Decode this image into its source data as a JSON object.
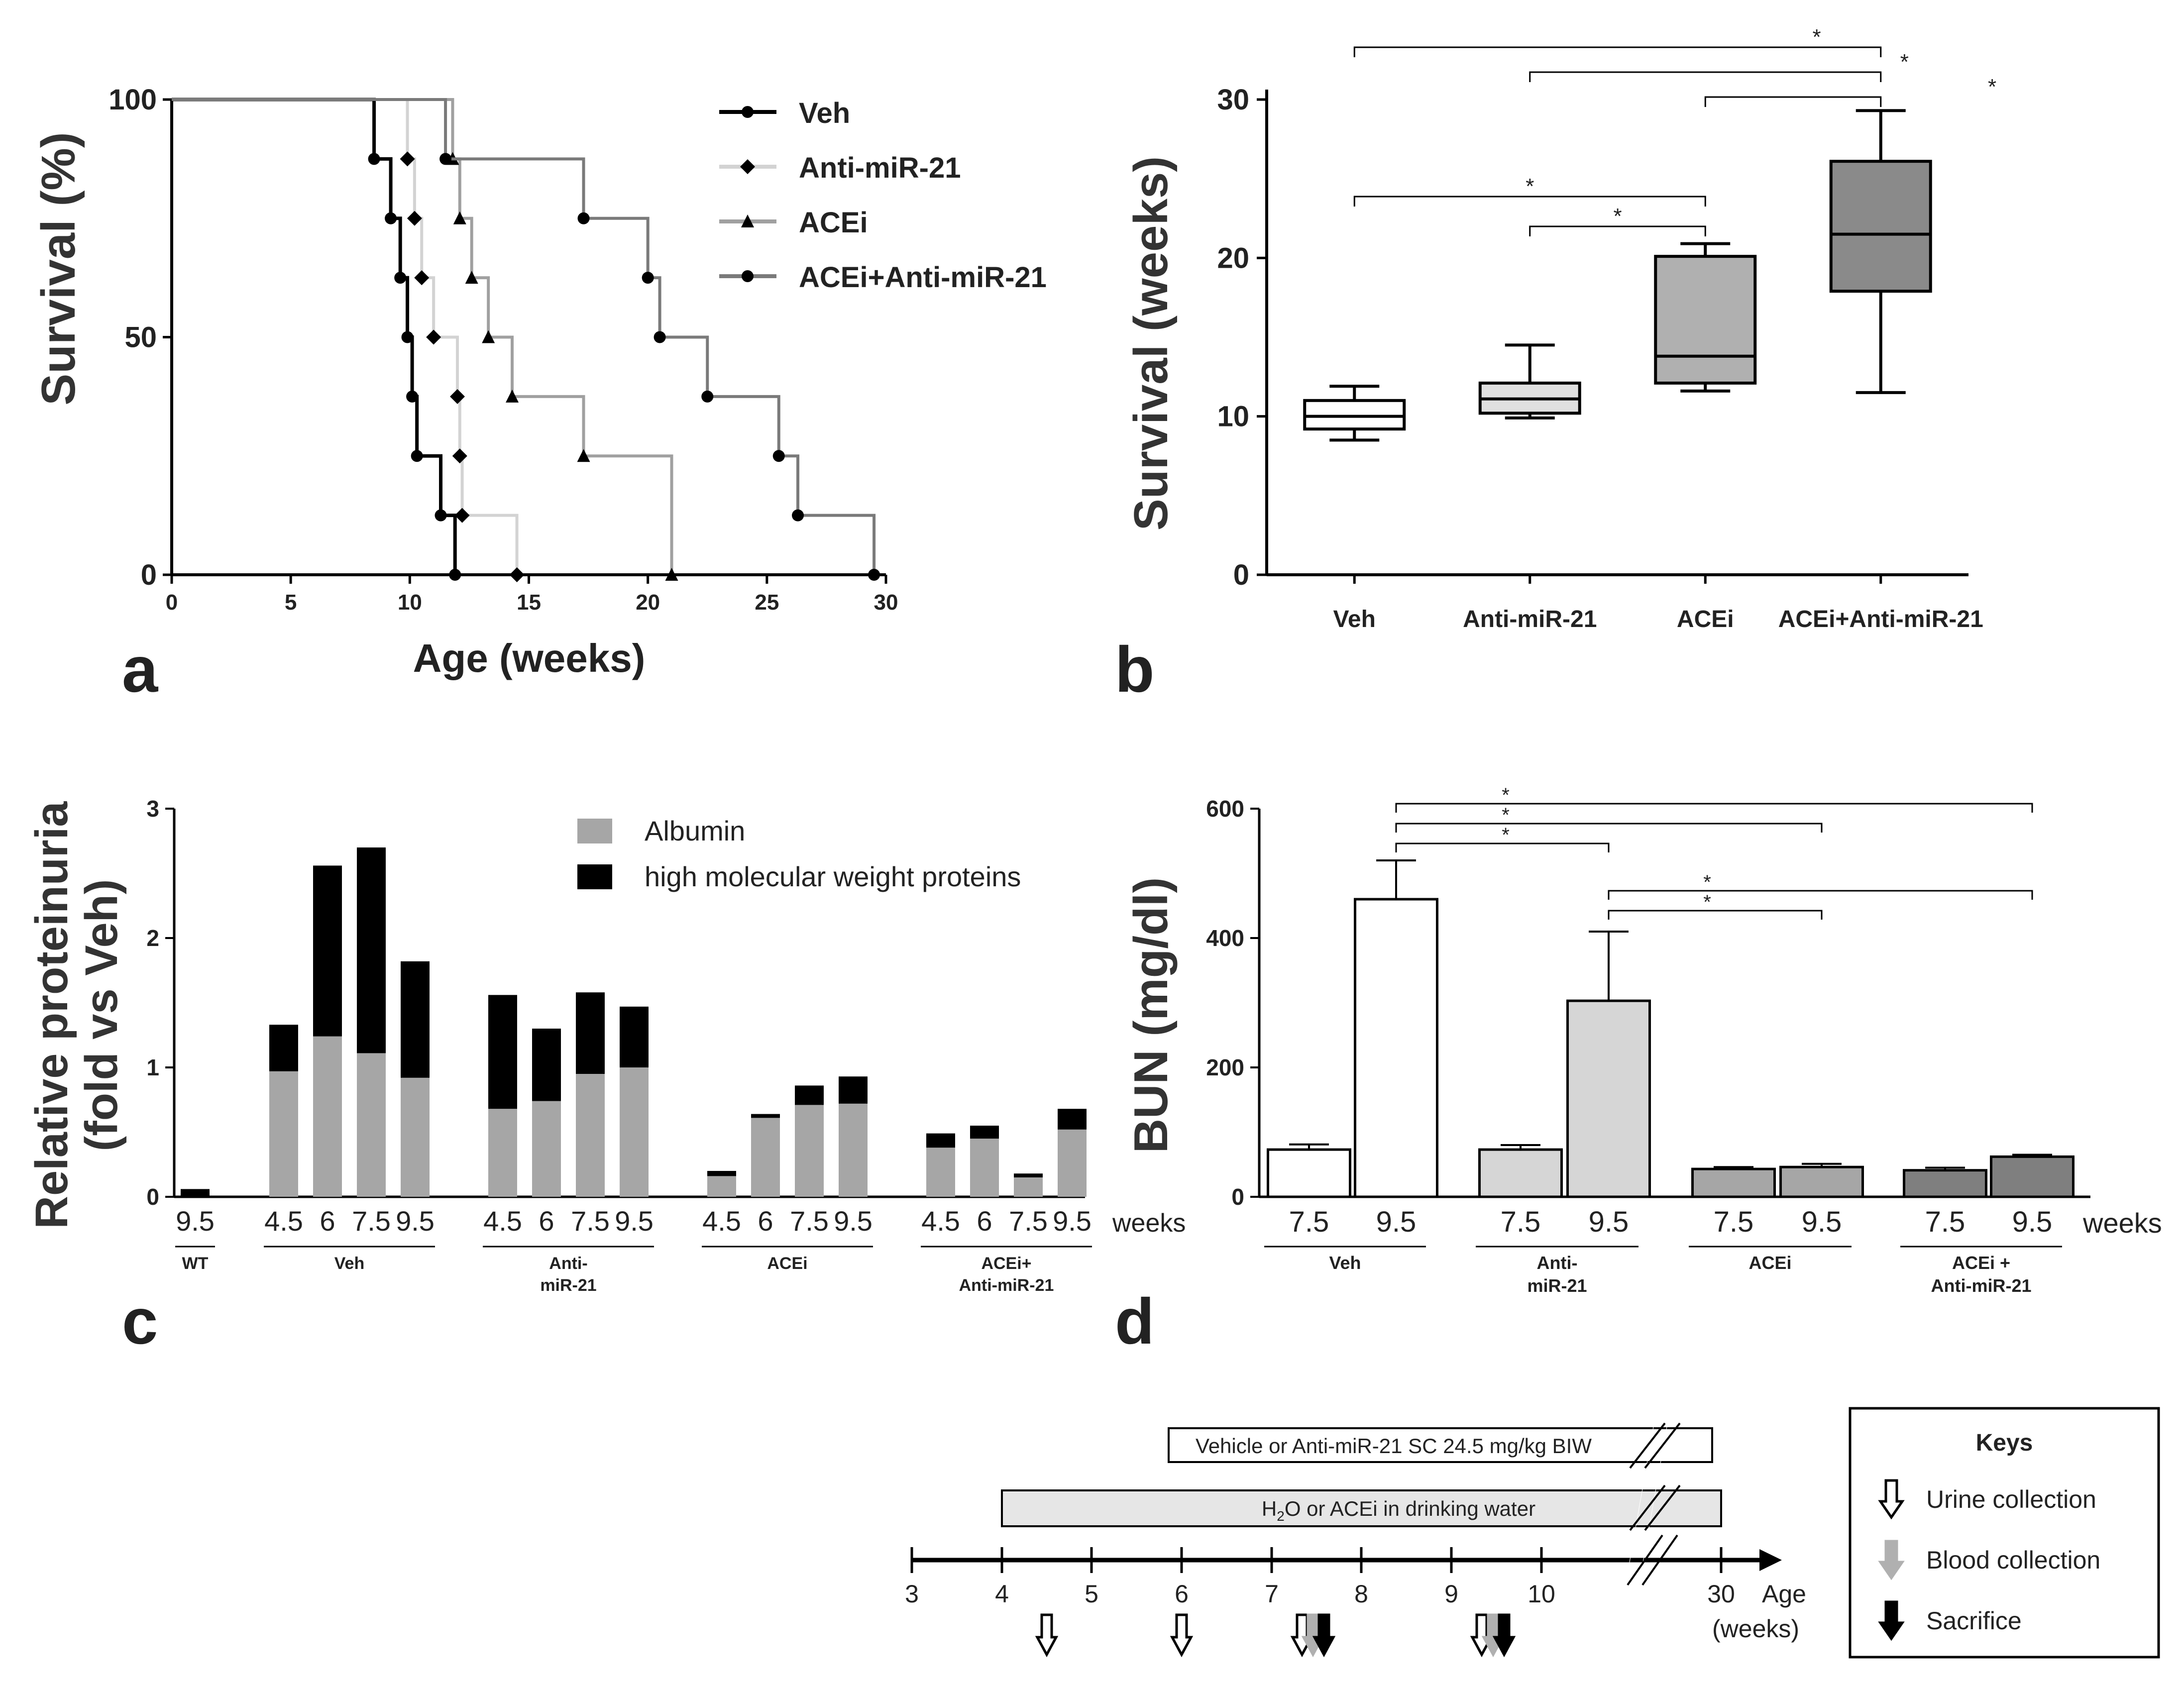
{
  "chart_data": [
    {
      "panel": "a",
      "type": "line",
      "subtype": "kaplan-meier",
      "xlabel": "Age (weeks)",
      "ylabel": "Survival (%)",
      "xlim": [
        0,
        30
      ],
      "ylim": [
        0,
        100
      ],
      "xticks": [
        "0",
        "5",
        "10",
        "15",
        "20",
        "25",
        "30"
      ],
      "yticks": [
        "0",
        "50",
        "100"
      ],
      "legend_position": "top-right",
      "series": [
        {
          "name": "Veh",
          "color": "#000000",
          "marker": "circle",
          "steps": [
            [
              0,
              100
            ],
            [
              8.5,
              87.5
            ],
            [
              9.2,
              75
            ],
            [
              9.6,
              62.5
            ],
            [
              9.9,
              50
            ],
            [
              10.1,
              37.5
            ],
            [
              10.3,
              25
            ],
            [
              11.3,
              12.5
            ],
            [
              11.9,
              0
            ]
          ]
        },
        {
          "name": "Anti-miR-21",
          "color": "#d3d3d3",
          "marker": "diamond",
          "steps": [
            [
              0,
              100
            ],
            [
              9.9,
              87.5
            ],
            [
              10.2,
              75
            ],
            [
              10.5,
              62.5
            ],
            [
              11.0,
              50
            ],
            [
              12.0,
              37.5
            ],
            [
              12.1,
              25
            ],
            [
              12.2,
              12.5
            ],
            [
              14.5,
              0
            ]
          ]
        },
        {
          "name": "ACEi",
          "color": "#a0a0a0",
          "marker": "triangle",
          "steps": [
            [
              0,
              100
            ],
            [
              11.8,
              87.5
            ],
            [
              12.1,
              75
            ],
            [
              12.6,
              62.5
            ],
            [
              13.3,
              50
            ],
            [
              14.3,
              37.5
            ],
            [
              17.3,
              25
            ],
            [
              21.0,
              0
            ]
          ]
        },
        {
          "name": "ACEi+Anti-miR-21",
          "color": "#7a7a7a",
          "marker": "circle",
          "steps": [
            [
              0,
              100
            ],
            [
              11.5,
              87.5
            ],
            [
              17.3,
              75
            ],
            [
              20.0,
              62.5
            ],
            [
              20.5,
              50
            ],
            [
              22.5,
              37.5
            ],
            [
              25.5,
              25
            ],
            [
              26.3,
              12.5
            ],
            [
              29.5,
              0
            ]
          ]
        }
      ]
    },
    {
      "panel": "b",
      "type": "box",
      "ylabel": "Survival (weeks)",
      "ylim": [
        0,
        30
      ],
      "yticks": [
        "0",
        "10",
        "20",
        "30"
      ],
      "categories": [
        "Veh",
        "Anti-miR-21",
        "ACEi",
        "ACEi+Anti-miR-21"
      ],
      "boxes": [
        {
          "min": 8.5,
          "q1": 9.2,
          "median": 10.0,
          "q3": 11.0,
          "max": 11.9,
          "color": "#ffffff"
        },
        {
          "min": 9.9,
          "q1": 10.2,
          "median": 11.1,
          "q3": 12.1,
          "max": 14.5,
          "color": "#e0e0e0"
        },
        {
          "min": 11.6,
          "q1": 12.1,
          "median": 13.8,
          "q3": 20.1,
          "max": 20.9,
          "color": "#b0b0b0"
        },
        {
          "min": 11.5,
          "q1": 17.9,
          "median": 21.5,
          "q3": 26.1,
          "max": 29.3,
          "color": "#8a8a8a"
        }
      ],
      "significance": [
        {
          "from": 0,
          "to": 3,
          "label": "*"
        },
        {
          "from": 1,
          "to": 3,
          "label": "*"
        },
        {
          "from": 2,
          "to": 3,
          "label": "*"
        },
        {
          "from": 0,
          "to": 2,
          "label": "*"
        },
        {
          "from": 1,
          "to": 2,
          "label": "*"
        }
      ]
    },
    {
      "panel": "c",
      "type": "bar",
      "stacked": true,
      "ylabel_line1": "Relative proteinuria",
      "ylabel_line2": "(fold vs Veh)",
      "ylim": [
        0,
        3
      ],
      "yticks": [
        "0",
        "1",
        "2",
        "3"
      ],
      "unit_label": "weeks",
      "legend_position": "top-right",
      "legend": [
        {
          "name": "Albumin",
          "color": "#a6a6a6"
        },
        {
          "name": "high molecular weight proteins",
          "color": "#000000"
        }
      ],
      "groups": [
        {
          "name": "WT",
          "bars": [
            {
              "label": "9.5",
              "albumin": 0.0,
              "total": 0.06
            }
          ]
        },
        {
          "name": "Veh",
          "bars": [
            {
              "label": "4.5",
              "albumin": 0.97,
              "total": 1.33
            },
            {
              "label": "6",
              "albumin": 1.24,
              "total": 2.56
            },
            {
              "label": "7.5",
              "albumin": 1.11,
              "total": 2.7
            },
            {
              "label": "9.5",
              "albumin": 0.92,
              "total": 1.82
            }
          ]
        },
        {
          "name": "Anti-\nmiR-21",
          "bars": [
            {
              "label": "4.5",
              "albumin": 0.68,
              "total": 1.56
            },
            {
              "label": "6",
              "albumin": 0.74,
              "total": 1.3
            },
            {
              "label": "7.5",
              "albumin": 0.95,
              "total": 1.58
            },
            {
              "label": "9.5",
              "albumin": 1.0,
              "total": 1.47
            }
          ]
        },
        {
          "name": "ACEi",
          "bars": [
            {
              "label": "4.5",
              "albumin": 0.16,
              "total": 0.2
            },
            {
              "label": "6",
              "albumin": 0.61,
              "total": 0.64
            },
            {
              "label": "7.5",
              "albumin": 0.71,
              "total": 0.86
            },
            {
              "label": "9.5",
              "albumin": 0.72,
              "total": 0.93
            }
          ]
        },
        {
          "name": "ACEi+\nAnti-miR-21",
          "bars": [
            {
              "label": "4.5",
              "albumin": 0.38,
              "total": 0.49
            },
            {
              "label": "6",
              "albumin": 0.45,
              "total": 0.55
            },
            {
              "label": "7.5",
              "albumin": 0.15,
              "total": 0.18
            },
            {
              "label": "9.5",
              "albumin": 0.52,
              "total": 0.68
            }
          ]
        }
      ]
    },
    {
      "panel": "d",
      "type": "bar",
      "ylabel": "BUN (mg/dl)",
      "ylim": [
        0,
        600
      ],
      "yticks": [
        "0",
        "200",
        "400",
        "600"
      ],
      "unit_label": "weeks",
      "groups": [
        {
          "name": "Veh",
          "color": "#ffffff",
          "bars": [
            {
              "label": "7.5",
              "value": 73,
              "error": 8
            },
            {
              "label": "9.5",
              "value": 460,
              "error": 60
            }
          ]
        },
        {
          "name": "Anti-\nmiR-21",
          "color": "#d6d6d6",
          "bars": [
            {
              "label": "7.5",
              "value": 73,
              "error": 7
            },
            {
              "label": "9.5",
              "value": 303,
              "error": 107
            }
          ]
        },
        {
          "name": "ACEi",
          "color": "#a6a6a6",
          "bars": [
            {
              "label": "7.5",
              "value": 43,
              "error": 3
            },
            {
              "label": "9.5",
              "value": 46,
              "error": 5
            }
          ]
        },
        {
          "name": "ACEi +\nAnti-miR-21",
          "color": "#7f7f7f",
          "bars": [
            {
              "label": "7.5",
              "value": 41,
              "error": 4
            },
            {
              "label": "9.5",
              "value": 62,
              "error": 3
            }
          ]
        }
      ],
      "significance": [
        {
          "from": [
            0,
            1
          ],
          "to": [
            3,
            1
          ],
          "label": "*"
        },
        {
          "from": [
            0,
            1
          ],
          "to": [
            2,
            1
          ],
          "label": "*"
        },
        {
          "from": [
            0,
            1
          ],
          "to": [
            1,
            1
          ],
          "label": "*"
        },
        {
          "from": [
            1,
            1
          ],
          "to": [
            3,
            1
          ],
          "label": "*"
        },
        {
          "from": [
            1,
            1
          ],
          "to": [
            2,
            1
          ],
          "label": "*"
        }
      ]
    },
    {
      "panel": "timeline",
      "type": "timeline",
      "axis_ticks": [
        "3",
        "4",
        "5",
        "6",
        "7",
        "8",
        "9",
        "10",
        "30"
      ],
      "axis_label_line1": "Age",
      "axis_label_line2": "(weeks)",
      "bar1_text": "Vehicle or Anti-miR-21 SC 24.5 mg/kg BIW",
      "bar2_text_pre": "H",
      "bar2_text_sub": "2",
      "bar2_text_post": "O or ACEi in drinking water",
      "keys_title": "Keys",
      "keys": [
        {
          "label": "Urine collection",
          "color": "#ffffff"
        },
        {
          "label": "Blood collection",
          "color": "#b0b0b0"
        },
        {
          "label": "Sacrifice",
          "color": "#000000"
        }
      ]
    }
  ],
  "panel_labels": [
    "a",
    "b",
    "c",
    "d"
  ]
}
